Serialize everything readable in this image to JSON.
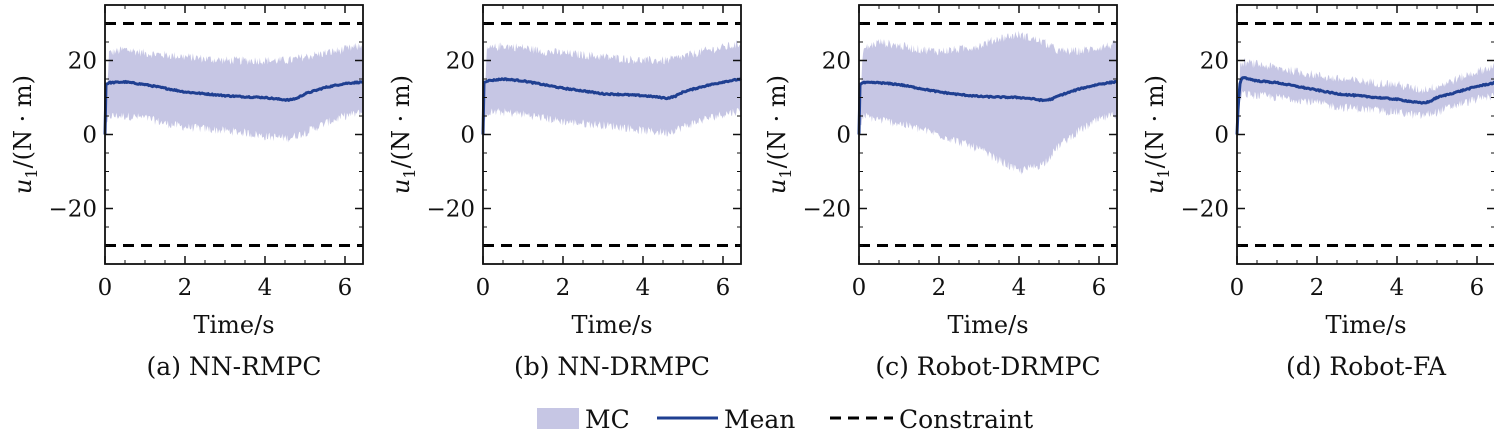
{
  "colors": {
    "mc_band": "#c6c6e4",
    "mean_line": "#1f3f91",
    "constraint": "#000000",
    "axis": "#111111"
  },
  "legend": {
    "mc_label": "MC",
    "mean_label": "Mean",
    "constraint_label": "Constraint"
  },
  "chart_data": [
    {
      "type": "line",
      "caption": "(a) NN-RMPC",
      "xlabel": "Time/s",
      "ylabel_var": "u",
      "ylabel_sub": "1",
      "ylabel_unit": "/(N · m)",
      "xlim": [
        0,
        6.45
      ],
      "ylim": [
        -35,
        35
      ],
      "xticks": [
        0,
        2,
        4,
        6
      ],
      "yticks": [
        -20,
        0,
        20
      ],
      "xtick_labels": [
        "0",
        "2",
        "4",
        "6"
      ],
      "ytick_labels": [
        "−20",
        "0",
        "20"
      ],
      "constraints": [
        30,
        -30
      ],
      "mean": {
        "x": [
          0,
          0.02,
          0.1,
          0.5,
          1,
          1.5,
          2,
          2.5,
          3,
          3.5,
          4,
          4.3,
          4.6,
          4.8,
          5,
          5.5,
          6,
          6.45
        ],
        "y": [
          0,
          13.5,
          14,
          14.2,
          13.5,
          12.5,
          11.5,
          11,
          10.5,
          10.2,
          10,
          9.6,
          9.3,
          9.8,
          11,
          12.7,
          13.8,
          14.2
        ]
      },
      "band_upper": {
        "x": [
          0,
          0.1,
          0.5,
          1,
          1.5,
          2,
          2.5,
          3,
          3.5,
          4,
          4.6,
          5,
          5.5,
          6,
          6.45
        ],
        "y": [
          0,
          22,
          23,
          22,
          21.5,
          21,
          20.5,
          20,
          20,
          20,
          20,
          21,
          22,
          23,
          24
        ]
      },
      "band_lower": {
        "x": [
          0,
          0.1,
          0.5,
          1,
          1.5,
          2,
          2.5,
          3,
          3.5,
          4,
          4.6,
          5,
          5.5,
          6,
          6.45
        ],
        "y": [
          0,
          5,
          5,
          4.5,
          3,
          2,
          1.5,
          1,
          0.5,
          -0.5,
          -1,
          0.5,
          3,
          5,
          6
        ]
      }
    },
    {
      "type": "line",
      "caption": "(b) NN-DRMPC",
      "xlabel": "Time/s",
      "ylabel_var": "u",
      "ylabel_sub": "1",
      "ylabel_unit": "/(N · m)",
      "xlim": [
        0,
        6.45
      ],
      "ylim": [
        -35,
        35
      ],
      "xticks": [
        0,
        2,
        4,
        6
      ],
      "yticks": [
        -20,
        0,
        20
      ],
      "xtick_labels": [
        "0",
        "2",
        "4",
        "6"
      ],
      "ytick_labels": [
        "−20",
        "0",
        "20"
      ],
      "constraints": [
        30,
        -30
      ],
      "mean": {
        "x": [
          0,
          0.02,
          0.1,
          0.5,
          1,
          1.5,
          2,
          2.5,
          3,
          3.5,
          4,
          4.3,
          4.6,
          4.8,
          5,
          5.5,
          6,
          6.45
        ],
        "y": [
          0,
          14,
          14.5,
          15,
          14.5,
          13.5,
          12.5,
          11.8,
          11,
          10.8,
          10.5,
          10.2,
          9.8,
          10.3,
          11.5,
          13,
          14.2,
          15
        ]
      },
      "band_upper": {
        "x": [
          0,
          0.1,
          0.5,
          1,
          1.5,
          2,
          2.5,
          3,
          3.5,
          4,
          4.6,
          5,
          5.5,
          6,
          6.45
        ],
        "y": [
          0,
          23,
          24,
          23.5,
          22.5,
          22,
          21.5,
          21,
          20.5,
          20,
          20,
          21,
          22.5,
          23.5,
          24.5
        ]
      },
      "band_lower": {
        "x": [
          0,
          0.1,
          0.5,
          1,
          1.5,
          2,
          2.5,
          3,
          3.5,
          4,
          4.6,
          5,
          5.5,
          6,
          6.45
        ],
        "y": [
          0,
          6,
          6,
          5.5,
          4.5,
          3.5,
          3,
          2.5,
          2,
          1,
          0.5,
          2,
          4,
          5.5,
          6.5
        ]
      }
    },
    {
      "type": "line",
      "caption": "(c) Robot-DRMPC",
      "xlabel": "Time/s",
      "ylabel_var": "u",
      "ylabel_sub": "1",
      "ylabel_unit": "/(N · m)",
      "xlim": [
        0,
        6.45
      ],
      "ylim": [
        -35,
        35
      ],
      "xticks": [
        0,
        2,
        4,
        6
      ],
      "yticks": [
        -20,
        0,
        20
      ],
      "xtick_labels": [
        "0",
        "2",
        "4",
        "6"
      ],
      "ytick_labels": [
        "−20",
        "0",
        "20"
      ],
      "constraints": [
        30,
        -30
      ],
      "mean": {
        "x": [
          0,
          0.02,
          0.1,
          0.5,
          1,
          1.5,
          2,
          2.5,
          3,
          3.5,
          4,
          4.3,
          4.6,
          4.8,
          5,
          5.5,
          6,
          6.45
        ],
        "y": [
          0,
          13.5,
          14,
          14,
          13.5,
          12.5,
          11.5,
          10.8,
          10.3,
          10.1,
          10,
          9.7,
          9.2,
          9.5,
          10.5,
          12.3,
          13.6,
          14.3
        ]
      },
      "band_upper": {
        "x": [
          0,
          0.1,
          0.5,
          1,
          1.5,
          2,
          2.5,
          3,
          3.5,
          4,
          4.6,
          5,
          5.5,
          6,
          6.45
        ],
        "y": [
          0,
          23,
          25,
          24,
          23,
          22.5,
          23,
          24,
          26,
          27,
          25,
          22.5,
          22.5,
          23.5,
          24.5
        ]
      },
      "band_lower": {
        "x": [
          0,
          0.1,
          0.5,
          1,
          1.5,
          2,
          2.5,
          3,
          3.5,
          4,
          4.6,
          5,
          5.5,
          6,
          6.45
        ],
        "y": [
          0,
          5,
          4,
          3,
          1.5,
          0,
          -2,
          -4,
          -7,
          -10,
          -8,
          -3,
          1,
          4,
          5.5
        ]
      }
    },
    {
      "type": "line",
      "caption": "(d) Robot-FA",
      "xlabel": "Time/s",
      "ylabel_var": "u",
      "ylabel_sub": "1",
      "ylabel_unit": "/(N · m)",
      "xlim": [
        0,
        6.45
      ],
      "ylim": [
        -35,
        35
      ],
      "xticks": [
        0,
        2,
        4,
        6
      ],
      "yticks": [
        -20,
        0,
        20
      ],
      "xtick_labels": [
        "0",
        "2",
        "4",
        "6"
      ],
      "ytick_labels": [
        "−20",
        "0",
        "20"
      ],
      "constraints": [
        30,
        -30
      ],
      "mean": {
        "x": [
          0,
          0.03,
          0.08,
          0.15,
          0.3,
          0.5,
          1,
          1.5,
          2,
          2.5,
          3,
          3.5,
          4,
          4.3,
          4.6,
          4.8,
          5,
          5.5,
          6,
          6.45
        ],
        "y": [
          0,
          8,
          14.5,
          15.5,
          15,
          14.5,
          14,
          13,
          12,
          11,
          10.5,
          10,
          9.5,
          9,
          8.5,
          8.8,
          10,
          11.5,
          13,
          14
        ]
      },
      "band_upper": {
        "x": [
          0,
          0.08,
          0.15,
          0.5,
          1,
          1.5,
          2,
          2.5,
          3,
          3.5,
          4,
          4.6,
          5,
          5.5,
          6,
          6.45
        ],
        "y": [
          0,
          18,
          19.5,
          19,
          18,
          17,
          16,
          15,
          14.5,
          14,
          13.5,
          12,
          13,
          15,
          17,
          18.5
        ]
      },
      "band_lower": {
        "x": [
          0,
          0.08,
          0.15,
          0.5,
          1,
          1.5,
          2,
          2.5,
          3,
          3.5,
          4,
          4.6,
          5,
          5.5,
          6,
          6.45
        ],
        "y": [
          0,
          10,
          11,
          10.5,
          10,
          9.5,
          8.5,
          7.5,
          7,
          6.5,
          6,
          5,
          6,
          8,
          9.5,
          10.5
        ]
      }
    }
  ]
}
